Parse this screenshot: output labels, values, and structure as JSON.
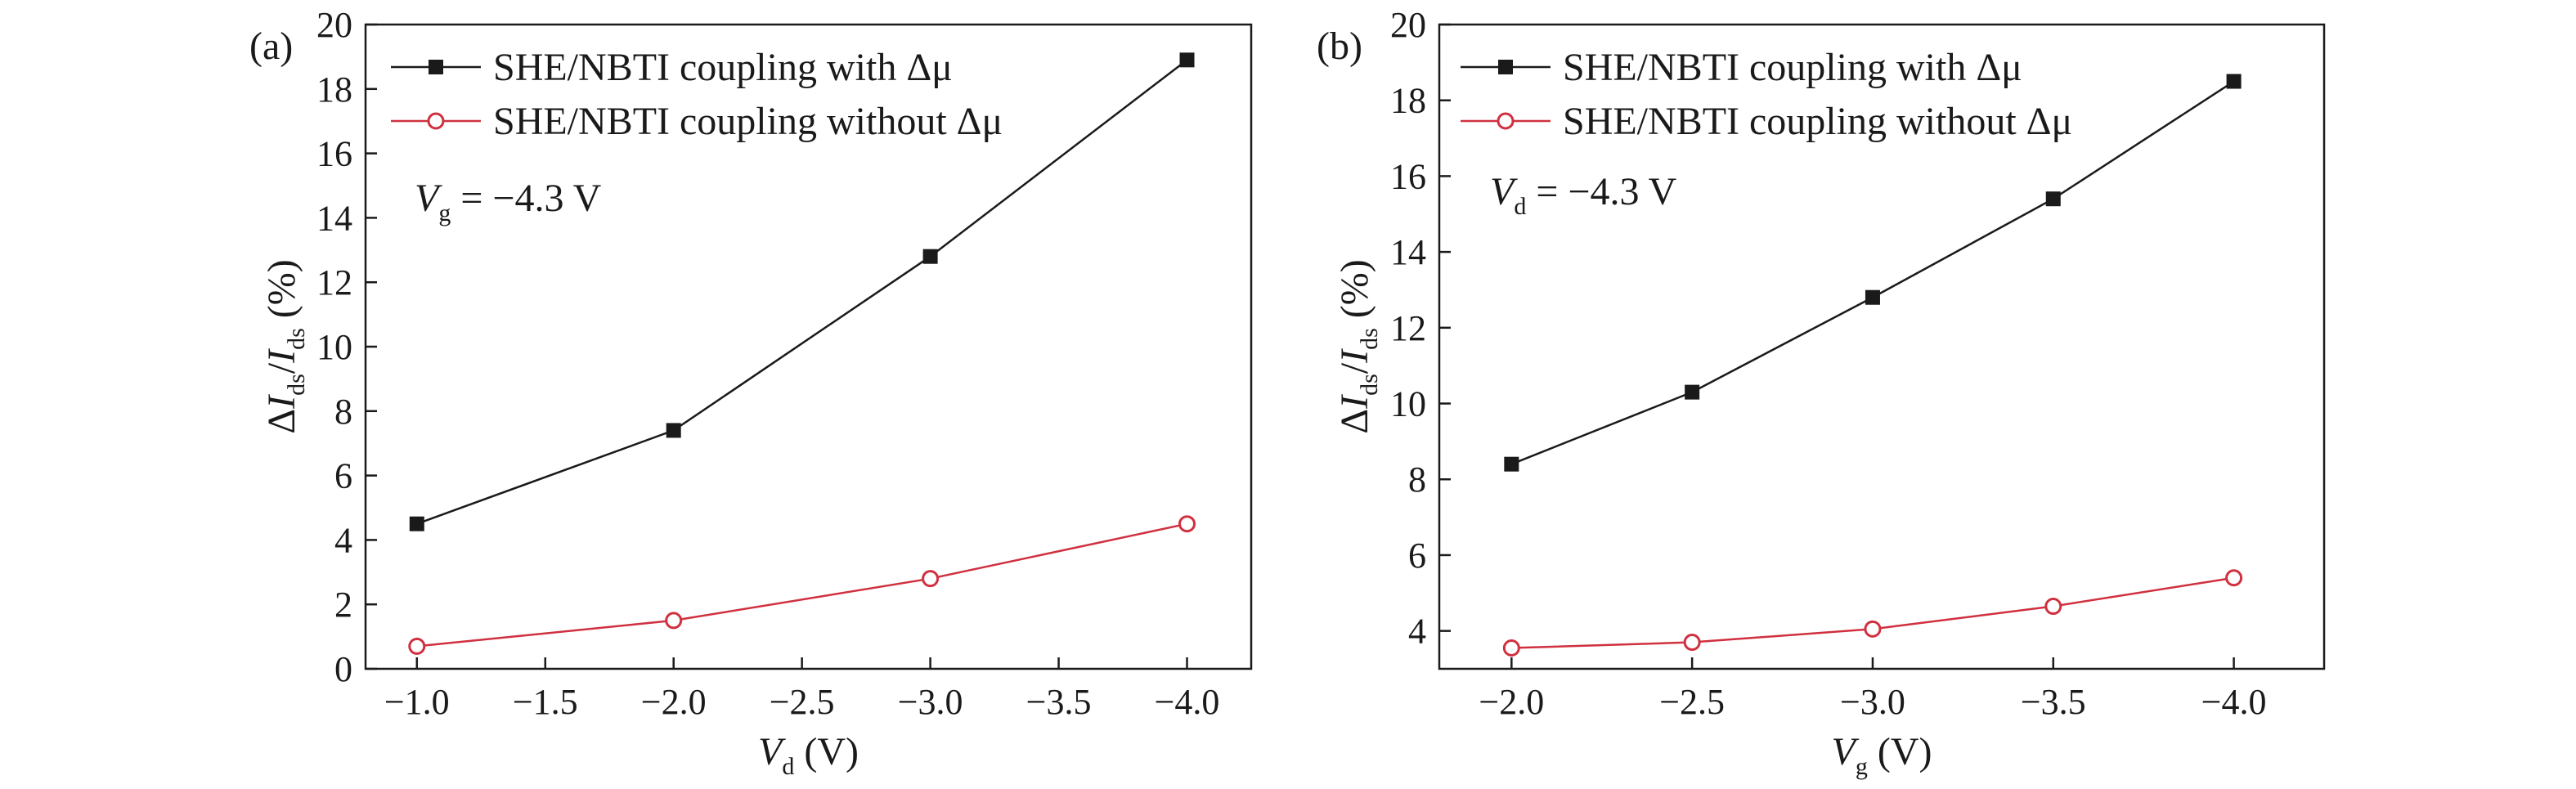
{
  "chart_data": [
    {
      "type": "line",
      "panel_label": "(a)",
      "x": [
        -1.0,
        -2.0,
        -3.0,
        -4.0
      ],
      "xlim": [
        -0.8,
        -4.25
      ],
      "xticks": [
        -1.0,
        -1.5,
        -2.0,
        -2.5,
        -3.0,
        -3.5,
        -4.0
      ],
      "xtick_labels": [
        "−1.0",
        "−1.5",
        "−2.0",
        "−2.5",
        "−3.0",
        "−3.5",
        "−4.0"
      ],
      "ylim": [
        0,
        20
      ],
      "yticks": [
        0,
        2,
        4,
        6,
        8,
        10,
        12,
        14,
        16,
        18,
        20
      ],
      "ytick_labels": [
        "0",
        "2",
        "4",
        "6",
        "8",
        "10",
        "12",
        "14",
        "16",
        "18",
        "20"
      ],
      "xlabel": {
        "symbol": "V",
        "sub": "d",
        "unit": " (V)"
      },
      "ylabel": {
        "pre": "Δ",
        "sym1": "I",
        "sub1": "ds",
        "mid": "/",
        "sym2": "I",
        "sub2": "ds",
        "unit": " (%)"
      },
      "condition": {
        "symbol": "V",
        "sub": "g",
        "text": "= −4.3 V"
      },
      "legend_position": "top-left",
      "grid": false,
      "series": [
        {
          "name": "SHE/NBTI coupling with Δμ",
          "color": "#1a1a1a",
          "marker": "filled-square",
          "values": [
            4.5,
            7.4,
            12.8,
            18.9
          ]
        },
        {
          "name": "SHE/NBTI coupling without Δμ",
          "color": "#d0303f",
          "marker": "open-circle",
          "values": [
            0.7,
            1.5,
            2.8,
            4.5
          ]
        }
      ]
    },
    {
      "type": "line",
      "panel_label": "(b)",
      "x": [
        -2.0,
        -2.5,
        -3.0,
        -3.5,
        -4.0
      ],
      "xlim": [
        -1.8,
        -4.25
      ],
      "xticks": [
        -2.0,
        -2.5,
        -3.0,
        -3.5,
        -4.0
      ],
      "xtick_labels": [
        "−2.0",
        "−2.5",
        "−3.0",
        "−3.5",
        "−4.0"
      ],
      "ylim": [
        3,
        20
      ],
      "yticks": [
        4,
        6,
        8,
        10,
        12,
        14,
        16,
        18,
        20
      ],
      "ytick_labels": [
        "4",
        "6",
        "8",
        "10",
        "12",
        "14",
        "16",
        "18",
        "20"
      ],
      "xlabel": {
        "symbol": "V",
        "sub": "g",
        "unit": " (V)"
      },
      "ylabel": {
        "pre": "Δ",
        "sym1": "I",
        "sub1": "ds",
        "mid": "/",
        "sym2": "I",
        "sub2": "ds",
        "unit": " (%)"
      },
      "condition": {
        "symbol": "V",
        "sub": "d",
        "text": "= −4.3 V"
      },
      "legend_position": "top-left",
      "grid": false,
      "series": [
        {
          "name": "SHE/NBTI coupling with Δμ",
          "color": "#1a1a1a",
          "marker": "filled-square",
          "values": [
            8.4,
            10.3,
            12.8,
            15.4,
            18.5
          ]
        },
        {
          "name": "SHE/NBTI coupling without Δμ",
          "color": "#d0303f",
          "marker": "open-circle",
          "values": [
            3.55,
            3.7,
            4.05,
            4.65,
            5.4
          ]
        }
      ]
    }
  ]
}
